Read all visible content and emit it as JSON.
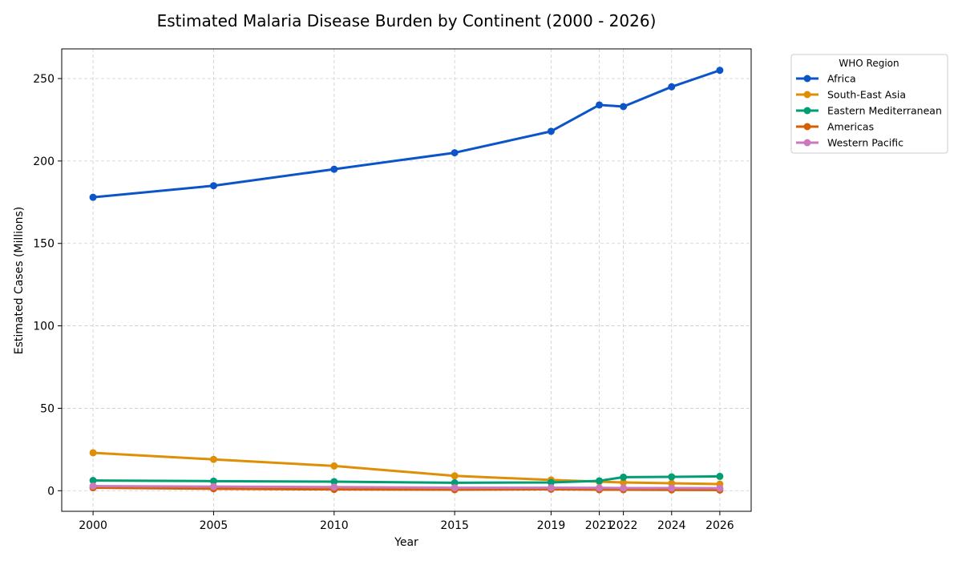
{
  "chart_data": {
    "type": "line",
    "title": "Estimated Malaria Disease Burden by Continent (2000 - 2026)",
    "xlabel": "Year",
    "ylabel": "Estimated Cases (Millions)",
    "x": [
      2000,
      2005,
      2010,
      2015,
      2019,
      2021,
      2022,
      2024,
      2026
    ],
    "x_tick_labels": [
      "2000",
      "2005",
      "2010",
      "2015",
      "2019",
      "2021",
      "2022",
      "2024",
      "2026"
    ],
    "xlim": [
      1998.7,
      2027.3
    ],
    "ylim": [
      -12.5,
      268
    ],
    "y_ticks": [
      0,
      50,
      100,
      150,
      200,
      250
    ],
    "grid": true,
    "legend": {
      "title": "WHO Region",
      "placement": "outside-top-right"
    },
    "series": [
      {
        "name": "Africa",
        "color": "#0b55c9",
        "values": [
          178,
          185,
          195,
          205,
          218,
          234,
          233,
          245,
          255
        ]
      },
      {
        "name": "South-East Asia",
        "color": "#de8f05",
        "values": [
          23,
          19,
          15,
          9,
          6.5,
          5.5,
          5,
          4.5,
          4
        ]
      },
      {
        "name": "Eastern Mediterranean",
        "color": "#029e73",
        "values": [
          6.2,
          5.8,
          5.5,
          4.8,
          5,
          6,
          8.2,
          8.4,
          8.7
        ]
      },
      {
        "name": "Americas",
        "color": "#d55e00",
        "values": [
          1.8,
          1.2,
          0.8,
          0.6,
          0.9,
          0.6,
          0.6,
          0.5,
          0.4
        ]
      },
      {
        "name": "Western Pacific",
        "color": "#cc78bc",
        "values": [
          2.8,
          2.5,
          2.2,
          1.8,
          1.8,
          1.7,
          1.6,
          1.6,
          1.5
        ]
      }
    ]
  }
}
